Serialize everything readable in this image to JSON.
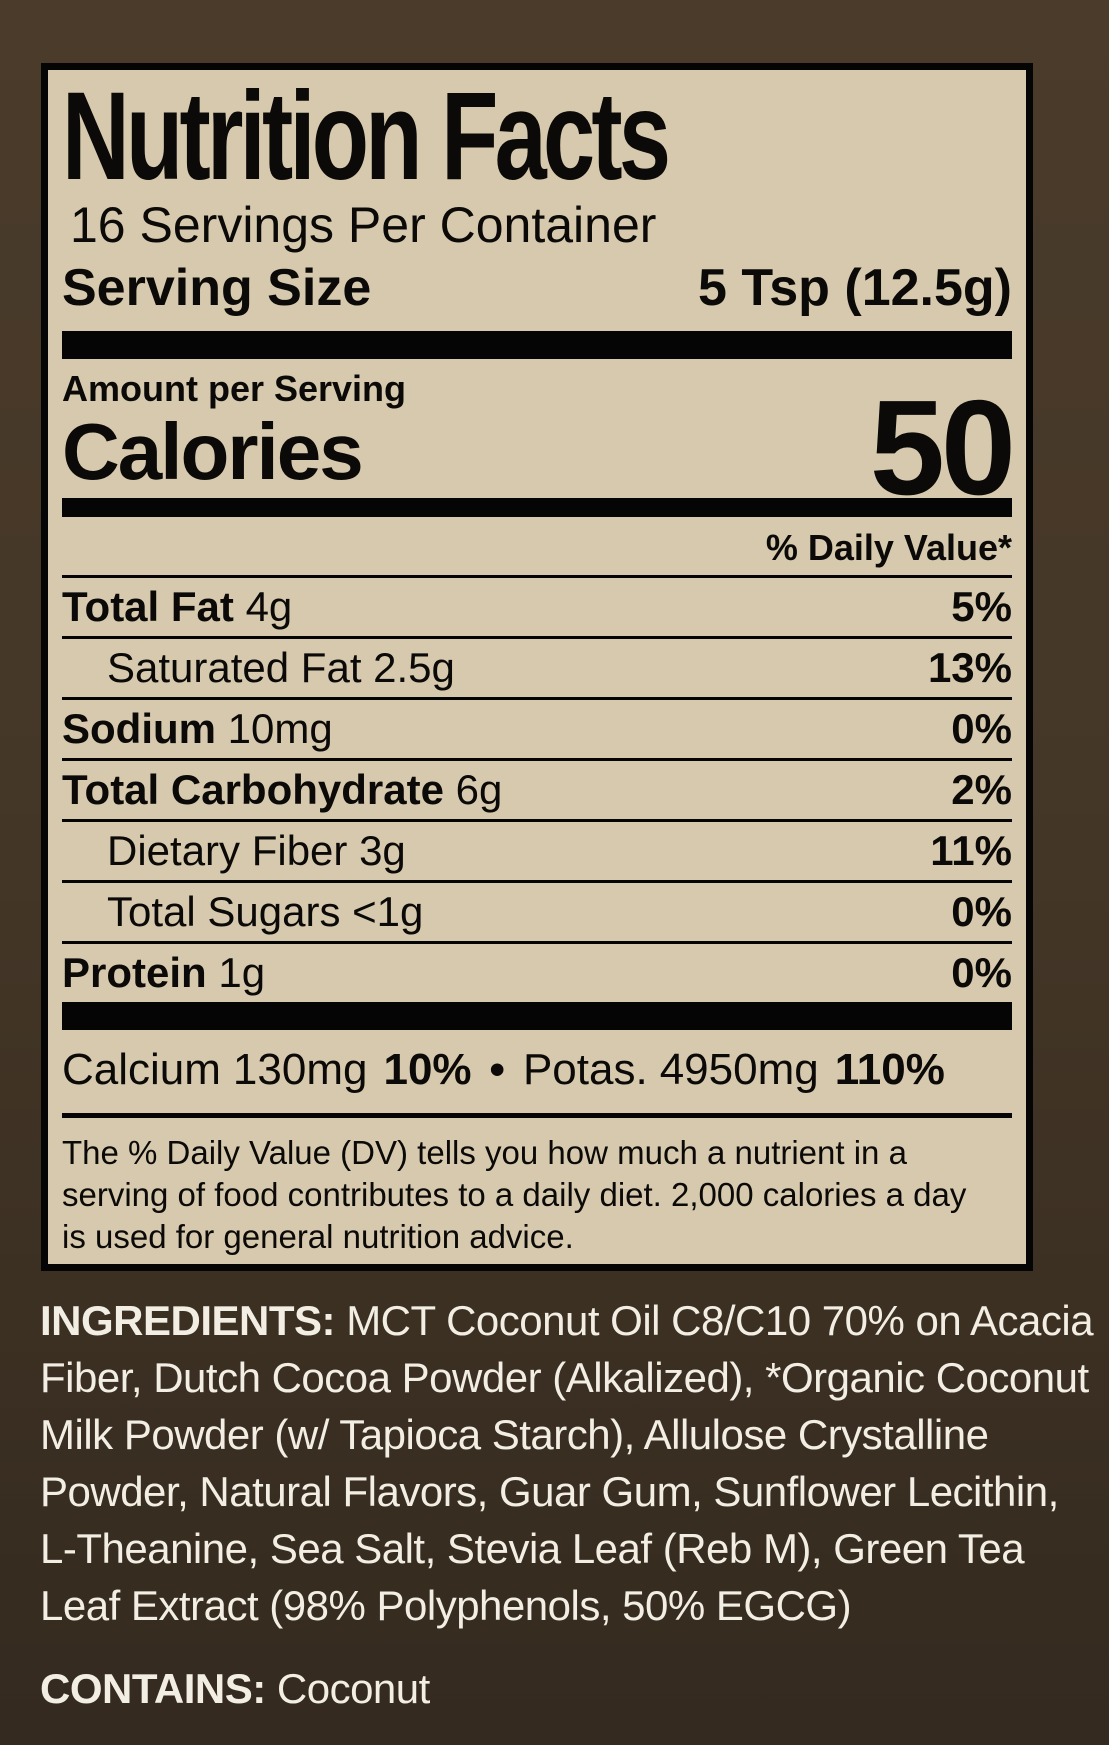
{
  "label": {
    "title": "Nutrition Facts",
    "servings_per_container": "16 Servings Per Container",
    "serving_size_label": "Serving Size",
    "serving_size_value": "5 Tsp (12.5g)",
    "amount_per_serving": "Amount per Serving",
    "calories_label": "Calories",
    "calories_value": "50",
    "daily_value_header": "% Daily Value*",
    "rows": [
      {
        "name": "Total Fat",
        "amount": "4g",
        "dv": "5%"
      },
      {
        "name": "Saturated Fat",
        "amount": "2.5g",
        "dv": "13%"
      },
      {
        "name": "Sodium",
        "amount": "10mg",
        "dv": "0%"
      },
      {
        "name": "Total Carbohydrate",
        "amount": "6g",
        "dv": "2%"
      },
      {
        "name": "Dietary Fiber",
        "amount": "3g",
        "dv": "11%"
      },
      {
        "name": "Total Sugars",
        "amount": "<1g",
        "dv": "0%"
      },
      {
        "name": "Protein",
        "amount": "1g",
        "dv": "0%"
      }
    ],
    "minerals": [
      {
        "name": "Calcium",
        "amount": "130mg",
        "dv": "10%"
      },
      {
        "name": "Potas.",
        "amount": "4950mg",
        "dv": "110%"
      }
    ],
    "minerals_separator": "•",
    "footnote": "The % Daily Value (DV) tells you how much a nutrient in a serving of food contributes to a daily diet. 2,000 calories a day is used for general nutrition advice."
  },
  "ingredients": {
    "heading": "INGREDIENTS:",
    "text": "MCT Coconut Oil C8/C10 70% on Acacia Fiber, Dutch Cocoa Powder (Alkalized), *Organic Coconut Milk Powder (w/ Tapioca Starch), Allulose Crystalline Powder, Natural Flavors, Guar Gum, Sunflower Lecithin, L-Theanine, Sea Salt, Stevia Leaf (Reb M), Green Tea Leaf Extract (98% Polyphenols, 50% EGCG)"
  },
  "contains": {
    "heading": "CONTAINS:",
    "text": "Coconut"
  },
  "colors": {
    "background_top": "#4a3b2b",
    "background_bottom": "#342a1f",
    "panel_background": "#d6c9ad",
    "panel_text": "#0b0a08",
    "outer_text": "#f3eee3"
  }
}
